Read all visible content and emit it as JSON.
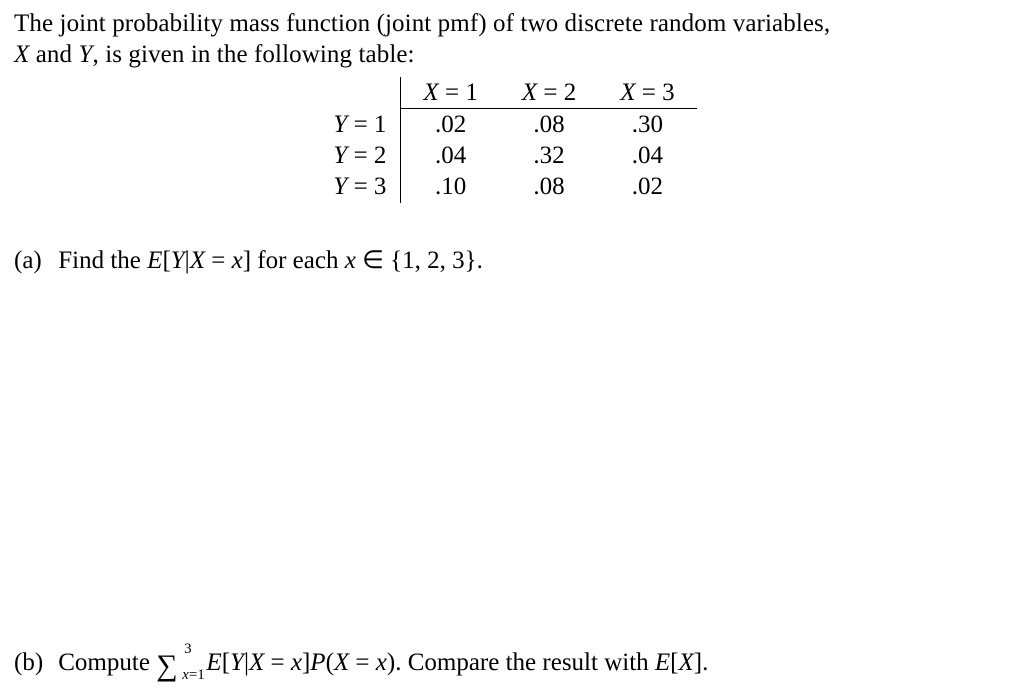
{
  "intro": {
    "l1a": "The joint probability mass function (joint pmf) of two discrete random variables,",
    "varX": "X",
    "and": " and ",
    "varY": "Y",
    "l2b": ", is given in the following table:"
  },
  "table": {
    "cols": {
      "c1": "X = 1",
      "c2": "X = 2",
      "c3": "X = 3"
    },
    "rows": {
      "r1": {
        "label": "Y = 1",
        "v1": ".02",
        "v2": ".08",
        "v3": ".30"
      },
      "r2": {
        "label": "Y = 2",
        "v1": ".04",
        "v2": ".32",
        "v3": ".04"
      },
      "r3": {
        "label": "Y = 3",
        "v1": ".10",
        "v2": ".08",
        "v3": ".02"
      }
    }
  },
  "partA": {
    "tag": "(a)",
    "pre": "Find the ",
    "expr": "E[Y|X = x]",
    "mid": " for each ",
    "xin": "x ∈ {1, 2, 3}.",
    "x": "x",
    "in": " ∈ {1, 2, 3}."
  },
  "partB": {
    "tag": "(b)",
    "pre": "Compute ",
    "sumUpper": "3",
    "sumLowerX": "x",
    "sumLowerRest": "=1",
    "expr1a": "E[Y|X = x]P(X = x)",
    "post": ". Compare the result with ",
    "expr2": "E[X]",
    "end": "."
  }
}
